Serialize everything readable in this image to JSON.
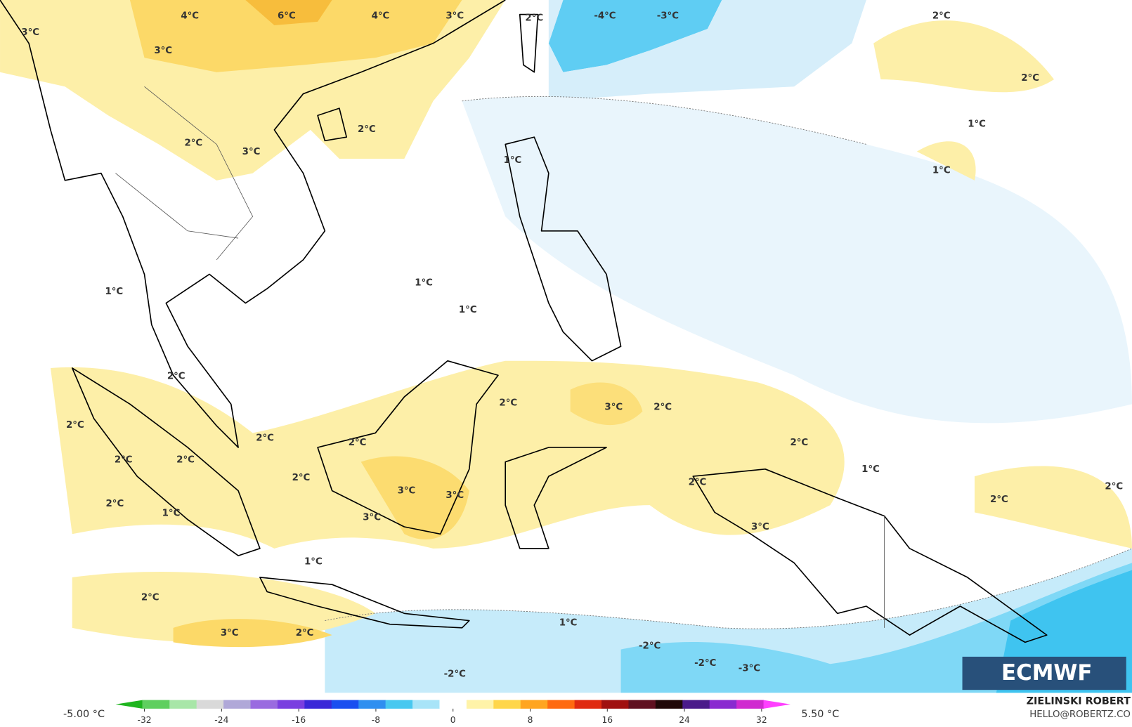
{
  "map": {
    "labels": [
      "4°C",
      "6°C",
      "4°C",
      "3°C",
      "2°C",
      "-4°C",
      "-3°C",
      "2°C",
      "3°C",
      "3°C",
      "2°C",
      "1°C",
      "2°C",
      "2°C",
      "3°C",
      "1°C",
      "1°C",
      "1°C",
      "1°C",
      "1°C",
      "2°C",
      "2°C",
      "3°C",
      "2°C",
      "2°C",
      "2°C",
      "2°C",
      "2°C",
      "2°C",
      "2°C",
      "1°C",
      "2°C",
      "2°C",
      "2°C",
      "3°C",
      "3°C",
      "2°C",
      "2°C",
      "1°C",
      "3°C",
      "3°C",
      "1°C",
      "1°C",
      "2°C",
      "3°C",
      "2°C",
      "-2°C",
      "-2°C",
      "-3°C",
      "-2°C"
    ],
    "logo": "ECMWF"
  },
  "colorbar": {
    "range": [
      -35,
      35
    ],
    "ticks": [
      -32,
      -24,
      -16,
      -8,
      0,
      8,
      16,
      24,
      32
    ],
    "min_label": "-5.00 °C",
    "max_label": "5.50 °C",
    "colors": [
      "#1fb51f",
      "#5fcf5f",
      "#a8e6a8",
      "#d9d9d9",
      "#b0a8d8",
      "#9a6be0",
      "#7a3fe0",
      "#3a28d8",
      "#1a4ff0",
      "#2f8ff0",
      "#48c8f0",
      "#a8e4f8",
      "#ffffff",
      "#fff3a8",
      "#ffd64a",
      "#ffa520",
      "#ff6a10",
      "#e02a10",
      "#a01010",
      "#601020",
      "#200808",
      "#4a1a8a",
      "#8a2ad0",
      "#d02ad0",
      "#ff40ff"
    ]
  },
  "credit": {
    "author": "ZIELINSKI ROBERT",
    "email": "HELLO@ROBERTZ.CO"
  }
}
